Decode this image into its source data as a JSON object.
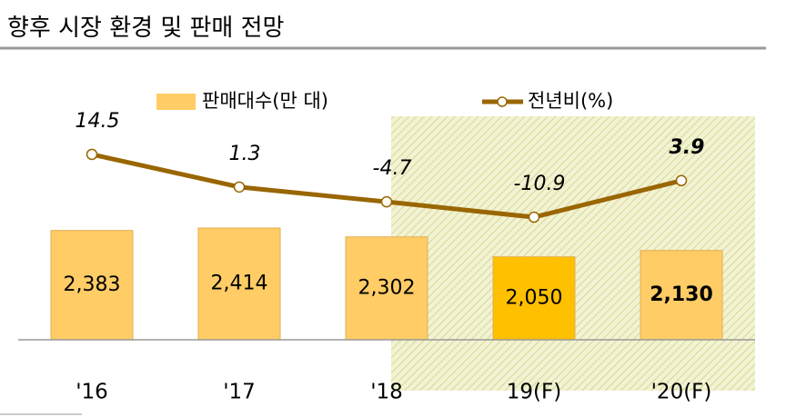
{
  "chart_data": {
    "type": "bar",
    "title": "향후 시장 환경 및 판매 전망",
    "categories": [
      "'16",
      "'17",
      "'18",
      "19(F)",
      "'20(F)"
    ],
    "series": [
      {
        "name": "판매대수(만 대)",
        "type": "bar",
        "axis": "y",
        "colors": [
          "#FFCC66",
          "#FFCC66",
          "#FFCC66",
          "#FFC000",
          "#FFCC66"
        ],
        "values": [
          2383,
          2414,
          2302,
          2050,
          2130
        ],
        "value_labels": [
          "2,383",
          "2,414",
          "2,302",
          "2,050",
          "2,130"
        ]
      },
      {
        "name": "전년비(%)",
        "type": "line",
        "axis": "y2",
        "color": "#996600",
        "values": [
          14.5,
          1.3,
          -4.7,
          -10.9,
          3.9
        ]
      }
    ],
    "ylim": [
      1000,
      4150
    ],
    "y2lim": [
      -60.5,
      40.2
    ]
  }
}
